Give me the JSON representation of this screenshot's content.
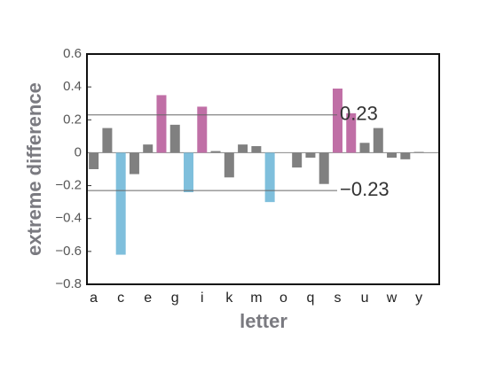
{
  "chart_data": {
    "type": "bar",
    "x_label": "letter",
    "y_label": "extreme difference",
    "categories": [
      "a",
      null,
      "c",
      null,
      "e",
      null,
      "g",
      null,
      "i",
      null,
      "k",
      null,
      "m",
      null,
      "o",
      null,
      "q",
      null,
      "s",
      null,
      "u",
      null,
      "w",
      null,
      "y",
      null
    ],
    "values": [
      -0.1,
      0.15,
      -0.62,
      -0.13,
      0.05,
      0.35,
      0.17,
      -0.24,
      0.28,
      0.01,
      -0.15,
      0.05,
      0.04,
      -0.3,
      0,
      -0.09,
      -0.03,
      -0.19,
      0.39,
      0.24,
      0.06,
      0.15,
      -0.03,
      -0.04,
      0.005,
      0
    ],
    "colors": [
      "#808080",
      "#808080",
      "#7fbfdc",
      "#808080",
      "#808080",
      "#c06fa6",
      "#808080",
      "#7fbfdc",
      "#c06fa6",
      "#808080",
      "#808080",
      "#808080",
      "#808080",
      "#7fbfdc",
      "#808080",
      "#808080",
      "#808080",
      "#808080",
      "#c06fa6",
      "#c06fa6",
      "#808080",
      "#808080",
      "#808080",
      "#808080",
      "#808080",
      "#808080"
    ],
    "ylim": [
      -0.8,
      0.6
    ],
    "yticks": [
      0.6,
      0.4,
      0.2,
      0,
      {
        "value": -0.2,
        "label": "−0.2"
      },
      {
        "value": -0.4,
        "label": "−0.4"
      },
      {
        "value": -0.6,
        "label": "−0.6"
      },
      {
        "value": -0.8,
        "label": "−0.8"
      }
    ],
    "hlines": [
      {
        "value": 0.23,
        "label": "0.23"
      },
      {
        "value": -0.23,
        "label": "−0.23"
      }
    ]
  }
}
